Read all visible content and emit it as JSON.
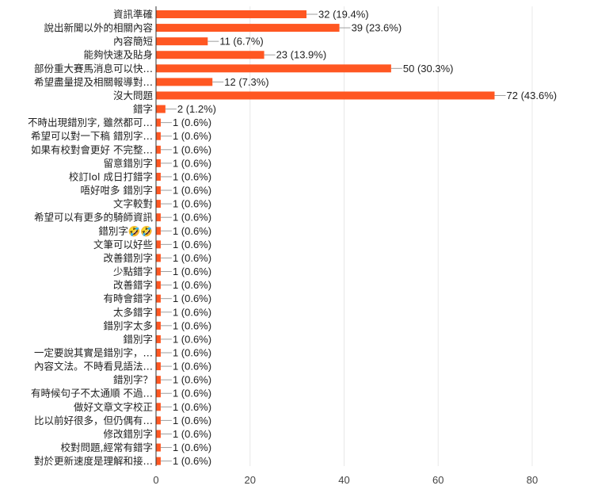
{
  "chart_data": {
    "type": "bar",
    "orientation": "horizontal",
    "title": "",
    "xlabel": "",
    "ylabel": "",
    "xlim": [
      0,
      80
    ],
    "xticks": [
      0,
      20,
      40,
      60,
      80
    ],
    "grid": true,
    "legend": "none",
    "bar_color": "#ff5722",
    "categories": [
      "資訊準確",
      "說出新聞以外的相關內容",
      "內容簡短",
      "能夠快速及貼身",
      "部份重大賽馬消息可以快…",
      "希望盡量提及相關報導對…",
      "沒大問題",
      "錯字",
      "不時出現錯別字, 雖然都可…",
      "希望可以對一下稿 錯別字…",
      "如果有校對會更好 不完整…",
      "留意錯別字",
      "校訂lol 成日打錯字",
      "唔好咁多 錯別字",
      "文字較對",
      "希望可以有更多的騎師資訊",
      "錯別字🤣🤣",
      "文筆可以好些",
      "改善錯別字",
      "少點錯字",
      "改善錯字",
      "有時會錯字",
      "太多錯字",
      "錯別字太多",
      "錯別字",
      "一定要說其實是錯別字，…",
      "內容文法。不時看見語法…",
      "錯別字？",
      "有時候句子不太通順 不過…",
      "做好文章文字校正",
      "比以前好很多，但仍偶有…",
      "修改錯別字",
      "校對問題,經常有錯字",
      "對於更新速度是理解和接…"
    ],
    "values": [
      32,
      39,
      11,
      23,
      50,
      12,
      72,
      2,
      1,
      1,
      1,
      1,
      1,
      1,
      1,
      1,
      1,
      1,
      1,
      1,
      1,
      1,
      1,
      1,
      1,
      1,
      1,
      1,
      1,
      1,
      1,
      1,
      1,
      1
    ],
    "data_labels": [
      "32 (19.4%)",
      "39 (23.6%)",
      "11 (6.7%)",
      "23 (13.9%)",
      "50 (30.3%)",
      "12 (7.3%)",
      "72 (43.6%)",
      "2 (1.2%)",
      "1 (0.6%)",
      "1 (0.6%)",
      "1 (0.6%)",
      "1 (0.6%)",
      "1 (0.6%)",
      "1 (0.6%)",
      "1 (0.6%)",
      "1 (0.6%)",
      "1 (0.6%)",
      "1 (0.6%)",
      "1 (0.6%)",
      "1 (0.6%)",
      "1 (0.6%)",
      "1 (0.6%)",
      "1 (0.6%)",
      "1 (0.6%)",
      "1 (0.6%)",
      "1 (0.6%)",
      "1 (0.6%)",
      "1 (0.6%)",
      "1 (0.6%)",
      "1 (0.6%)",
      "1 (0.6%)",
      "1 (0.6%)",
      "1 (0.6%)",
      "1 (0.6%)"
    ]
  }
}
